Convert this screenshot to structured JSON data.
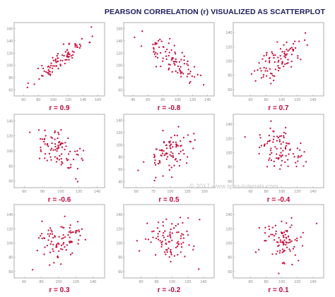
{
  "title": "PEARSON CORRELATION (r) VISUALIZED AS SCATTERPLOT",
  "watermark": "© 2017 www.spss-tutorials.com",
  "colors": {
    "point": "#c8103c",
    "r_label": "#c0063a",
    "title": "#1a1a5e",
    "panel_border": "#9a9a9a",
    "tick_text": "#8a8a8a"
  },
  "chart_data": [
    {
      "type": "scatter",
      "r_label": "r = 0.9",
      "r": 0.9,
      "seed": 11,
      "xticks": [
        60,
        80,
        100,
        120,
        140,
        160
      ],
      "yticks": [
        60,
        80,
        100,
        120,
        140,
        160
      ],
      "xlim": [
        55,
        165
      ],
      "ylim": [
        55,
        165
      ],
      "n": 90
    },
    {
      "type": "scatter",
      "r_label": "r = -0.8",
      "r": -0.8,
      "seed": 23,
      "xticks": [
        40,
        60,
        80,
        100,
        120,
        140
      ],
      "yticks": [
        60,
        80,
        100,
        120,
        140,
        160
      ],
      "xlim": [
        35,
        145
      ],
      "ylim": [
        55,
        165
      ],
      "n": 90
    },
    {
      "type": "scatter",
      "r_label": "r = 0.7",
      "r": 0.7,
      "seed": 37,
      "xticks": [
        60,
        80,
        100,
        120,
        140
      ],
      "yticks": [
        60,
        80,
        100,
        120,
        140
      ],
      "xlim": [
        45,
        150
      ],
      "ylim": [
        55,
        150
      ],
      "n": 90
    },
    {
      "type": "scatter",
      "r_label": "r = -0.6",
      "r": -0.6,
      "seed": 41,
      "xticks": [
        60,
        80,
        100,
        120,
        140
      ],
      "yticks": [
        60,
        80,
        100,
        120,
        140
      ],
      "xlim": [
        55,
        145
      ],
      "ylim": [
        55,
        145
      ],
      "n": 90
    },
    {
      "type": "scatter",
      "r_label": "r = 0.5",
      "r": 0.5,
      "seed": 53,
      "xticks": [
        50,
        75,
        100,
        125,
        150
      ],
      "yticks": [
        40,
        60,
        80,
        100,
        120,
        140
      ],
      "xlim": [
        40,
        160
      ],
      "ylim": [
        35,
        145
      ],
      "n": 90
    },
    {
      "type": "scatter",
      "r_label": "r = -0.4",
      "r": -0.4,
      "seed": 67,
      "xticks": [
        60,
        80,
        100,
        120,
        140
      ],
      "yticks": [
        60,
        80,
        100,
        120,
        140
      ],
      "xlim": [
        45,
        150
      ],
      "ylim": [
        55,
        150
      ],
      "n": 90
    },
    {
      "type": "scatter",
      "r_label": "r = 0.3",
      "r": 0.3,
      "seed": 71,
      "xticks": [
        60,
        80,
        100,
        120,
        140
      ],
      "yticks": [
        60,
        80,
        100,
        120,
        140
      ],
      "xlim": [
        55,
        150
      ],
      "ylim": [
        55,
        150
      ],
      "n": 90
    },
    {
      "type": "scatter",
      "r_label": "r = -0.2",
      "r": -0.2,
      "seed": 83,
      "xticks": [
        60,
        80,
        100,
        120,
        140
      ],
      "yticks": [
        60,
        80,
        100,
        120,
        140
      ],
      "xlim": [
        45,
        150
      ],
      "ylim": [
        55,
        150
      ],
      "n": 90
    },
    {
      "type": "scatter",
      "r_label": "r = 0.1",
      "r": 0.1,
      "seed": 97,
      "xticks": [
        60,
        80,
        100,
        120,
        140
      ],
      "yticks": [
        60,
        80,
        100,
        120,
        140
      ],
      "xlim": [
        45,
        150
      ],
      "ylim": [
        55,
        150
      ],
      "n": 90
    }
  ]
}
